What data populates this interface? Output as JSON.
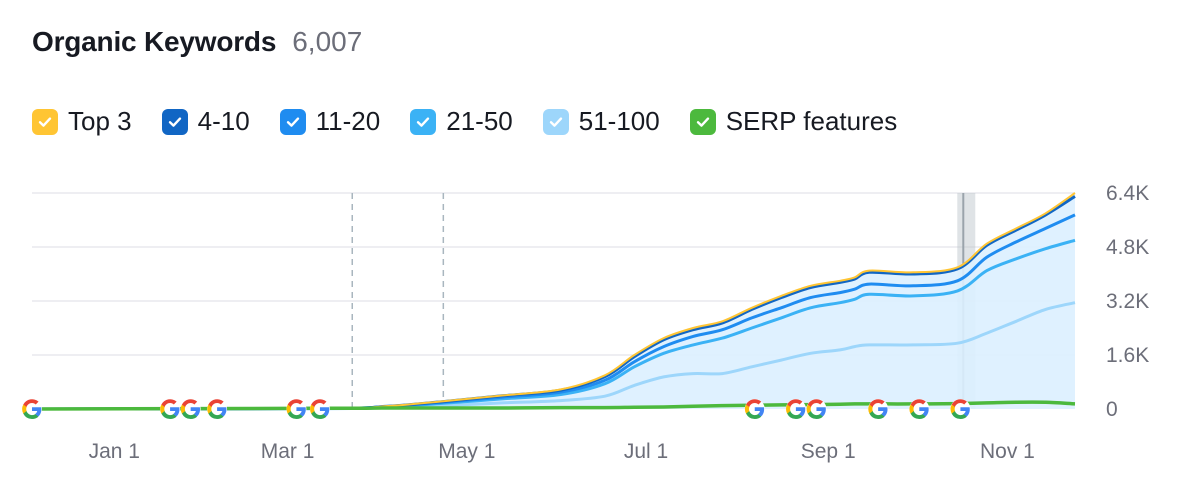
{
  "header": {
    "title": "Organic Keywords",
    "count": "6,007"
  },
  "legend": {
    "items": [
      {
        "label": "Top 3",
        "color": "#ffc533",
        "checked": true
      },
      {
        "label": "4-10",
        "color": "#1166c4",
        "checked": true
      },
      {
        "label": "11-20",
        "color": "#1f8cf0",
        "checked": true
      },
      {
        "label": "21-50",
        "color": "#3bb2f5",
        "checked": true
      },
      {
        "label": "51-100",
        "color": "#9dd6fb",
        "checked": true
      },
      {
        "label": "SERP features",
        "color": "#4cb93d",
        "checked": true
      }
    ]
  },
  "chart_data": {
    "type": "area",
    "title": "Organic Keywords",
    "ylim": [
      0,
      6400
    ],
    "y_ticks": [
      0,
      1600,
      3200,
      4800,
      6400
    ],
    "y_tick_labels": [
      "0",
      "1.6K",
      "3.2K",
      "4.8K",
      "6.4K"
    ],
    "x_domain": [
      0,
      355
    ],
    "x_ticks": [
      {
        "label": "Jan 1",
        "day": 28
      },
      {
        "label": "Mar 1",
        "day": 87
      },
      {
        "label": "May 1",
        "day": 148
      },
      {
        "label": "Jul 1",
        "day": 209
      },
      {
        "label": "Sep 1",
        "day": 271
      },
      {
        "label": "Nov 1",
        "day": 332
      }
    ],
    "x": [
      0,
      100,
      120,
      140,
      160,
      180,
      195,
      205,
      215,
      225,
      235,
      245,
      255,
      265,
      275,
      280,
      285,
      300,
      315,
      325,
      335,
      345,
      355
    ],
    "series": [
      {
        "name": "Top 3",
        "color": "#ffc533",
        "values": [
          0,
          20,
          80,
          230,
          400,
          580,
          1000,
          1600,
          2100,
          2400,
          2600,
          3000,
          3350,
          3650,
          3800,
          3900,
          4100,
          4050,
          4200,
          4900,
          5350,
          5800,
          6400
        ]
      },
      {
        "name": "4-10",
        "color": "#1166c4",
        "values": [
          0,
          19,
          76,
          220,
          390,
          560,
          960,
          1550,
          2050,
          2350,
          2550,
          2950,
          3300,
          3600,
          3750,
          3850,
          4050,
          4000,
          4150,
          4850,
          5300,
          5750,
          6300
        ]
      },
      {
        "name": "11-20",
        "color": "#1f8cf0",
        "values": [
          0,
          18,
          70,
          200,
          350,
          500,
          850,
          1400,
          1850,
          2150,
          2350,
          2700,
          3000,
          3300,
          3450,
          3550,
          3700,
          3650,
          3800,
          4500,
          4950,
          5350,
          5750
        ]
      },
      {
        "name": "21-50",
        "color": "#3bb2f5",
        "values": [
          0,
          15,
          60,
          170,
          300,
          430,
          750,
          1250,
          1650,
          1900,
          2100,
          2400,
          2700,
          3000,
          3150,
          3250,
          3400,
          3350,
          3500,
          4100,
          4450,
          4750,
          5000
        ]
      },
      {
        "name": "51-100",
        "color": "#9dd6fb",
        "values": [
          0,
          10,
          40,
          100,
          180,
          250,
          380,
          700,
          950,
          1050,
          1050,
          1250,
          1450,
          1650,
          1750,
          1850,
          1900,
          1900,
          1950,
          2250,
          2600,
          2950,
          3150
        ]
      },
      {
        "name": "SERP features",
        "color": "#4cb93d",
        "values": [
          0,
          20,
          30,
          30,
          30,
          40,
          40,
          50,
          60,
          80,
          100,
          110,
          120,
          130,
          140,
          150,
          150,
          150,
          160,
          180,
          200,
          200,
          150
        ]
      }
    ],
    "google_update_markers": [
      0,
      47,
      54,
      63,
      90,
      98,
      246,
      260,
      267,
      288,
      302,
      316
    ],
    "annotation_lines": [
      109,
      140
    ],
    "highlight_day": 318
  }
}
